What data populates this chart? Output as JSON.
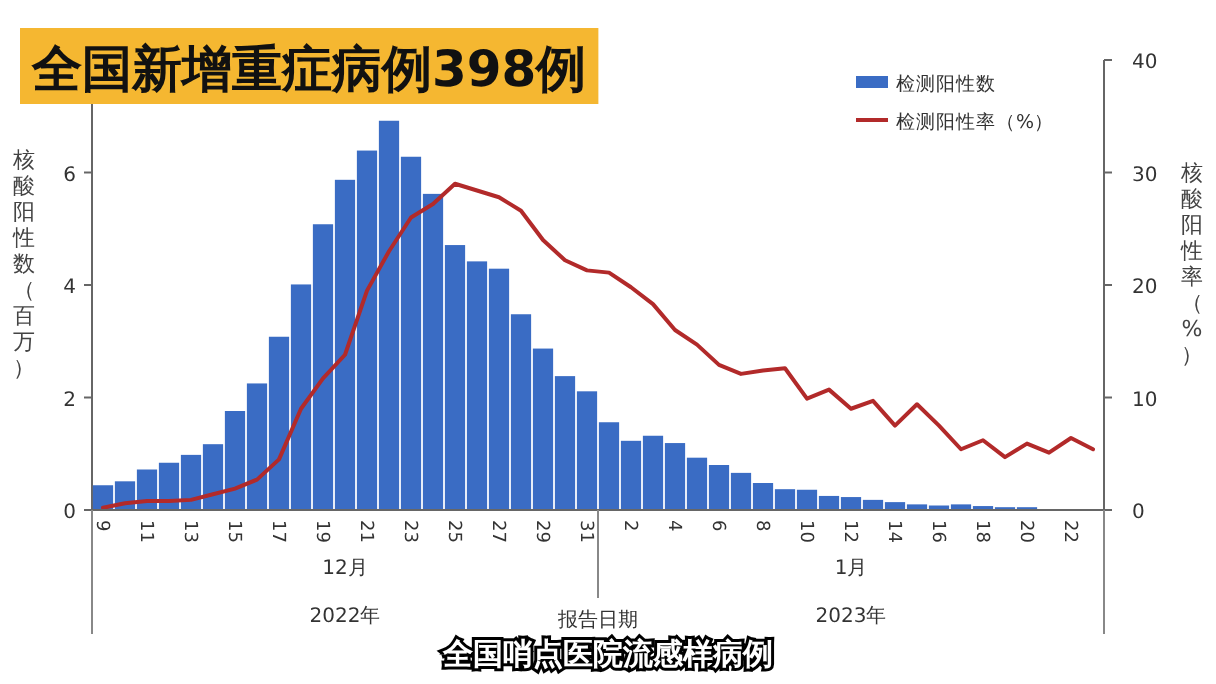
{
  "chart_data": {
    "type": "bar",
    "title": "全国新增重症病例398例",
    "xlabel": "报告日期",
    "ylabel": "核酸阳性数（百万）",
    "y2label": "核酸阳性率（%）",
    "categories": [
      "9",
      null,
      "11",
      null,
      "13",
      null,
      "15",
      null,
      "17",
      null,
      "19",
      null,
      "21",
      null,
      "23",
      null,
      "25",
      null,
      "27",
      null,
      "29",
      null,
      "31",
      null,
      "2",
      null,
      "4",
      null,
      "6",
      null,
      "8",
      null,
      "10",
      null,
      "12",
      null,
      "14",
      null,
      "16",
      null,
      "18",
      null,
      "20",
      null,
      "22",
      null
    ],
    "series": [
      {
        "name": "检测阳性数",
        "color": "#3a6cc4",
        "values": [
          0.44,
          0.51,
          0.72,
          0.84,
          0.98,
          1.17,
          1.76,
          2.25,
          3.08,
          4.01,
          5.08,
          5.87,
          6.39,
          6.92,
          6.28,
          5.62,
          4.71,
          4.42,
          4.29,
          3.48,
          2.87,
          2.38,
          2.11,
          1.56,
          1.23,
          1.32,
          1.19,
          0.93,
          0.8,
          0.66,
          0.48,
          0.37,
          0.36,
          0.25,
          0.23,
          0.18,
          0.14,
          0.1,
          0.08,
          0.1,
          0.07,
          0.05,
          0.05,
          null,
          null,
          null
        ]
      },
      {
        "name": "检测阳性率（%）",
        "type": "line",
        "axis": "y2",
        "color": "#b22a2a",
        "values": [
          0.2,
          0.6,
          0.8,
          0.8,
          0.9,
          1.4,
          1.9,
          2.7,
          4.5,
          9.0,
          11.7,
          13.8,
          19.5,
          23.0,
          26.0,
          27.2,
          29.0,
          28.4,
          27.8,
          26.6,
          24.0,
          22.2,
          21.3,
          21.1,
          19.8,
          18.3,
          16.0,
          14.7,
          12.9,
          12.1,
          12.4,
          12.6,
          9.9,
          10.7,
          9.0,
          9.7,
          7.5,
          9.4,
          7.5,
          5.4,
          6.2,
          4.7,
          5.9,
          5.1,
          6.4,
          5.4
        ]
      }
    ],
    "ylim": [
      0,
      8
    ],
    "yticks": [
      0,
      2,
      4,
      6
    ],
    "y2lim": [
      0,
      40
    ],
    "y2ticks": [
      0,
      10,
      20,
      30,
      40
    ],
    "legend": "top right",
    "grid": false,
    "annotations": [
      "12月",
      "2022年",
      "1月",
      "2023年",
      "全国哨点医院流感样病例"
    ]
  }
}
